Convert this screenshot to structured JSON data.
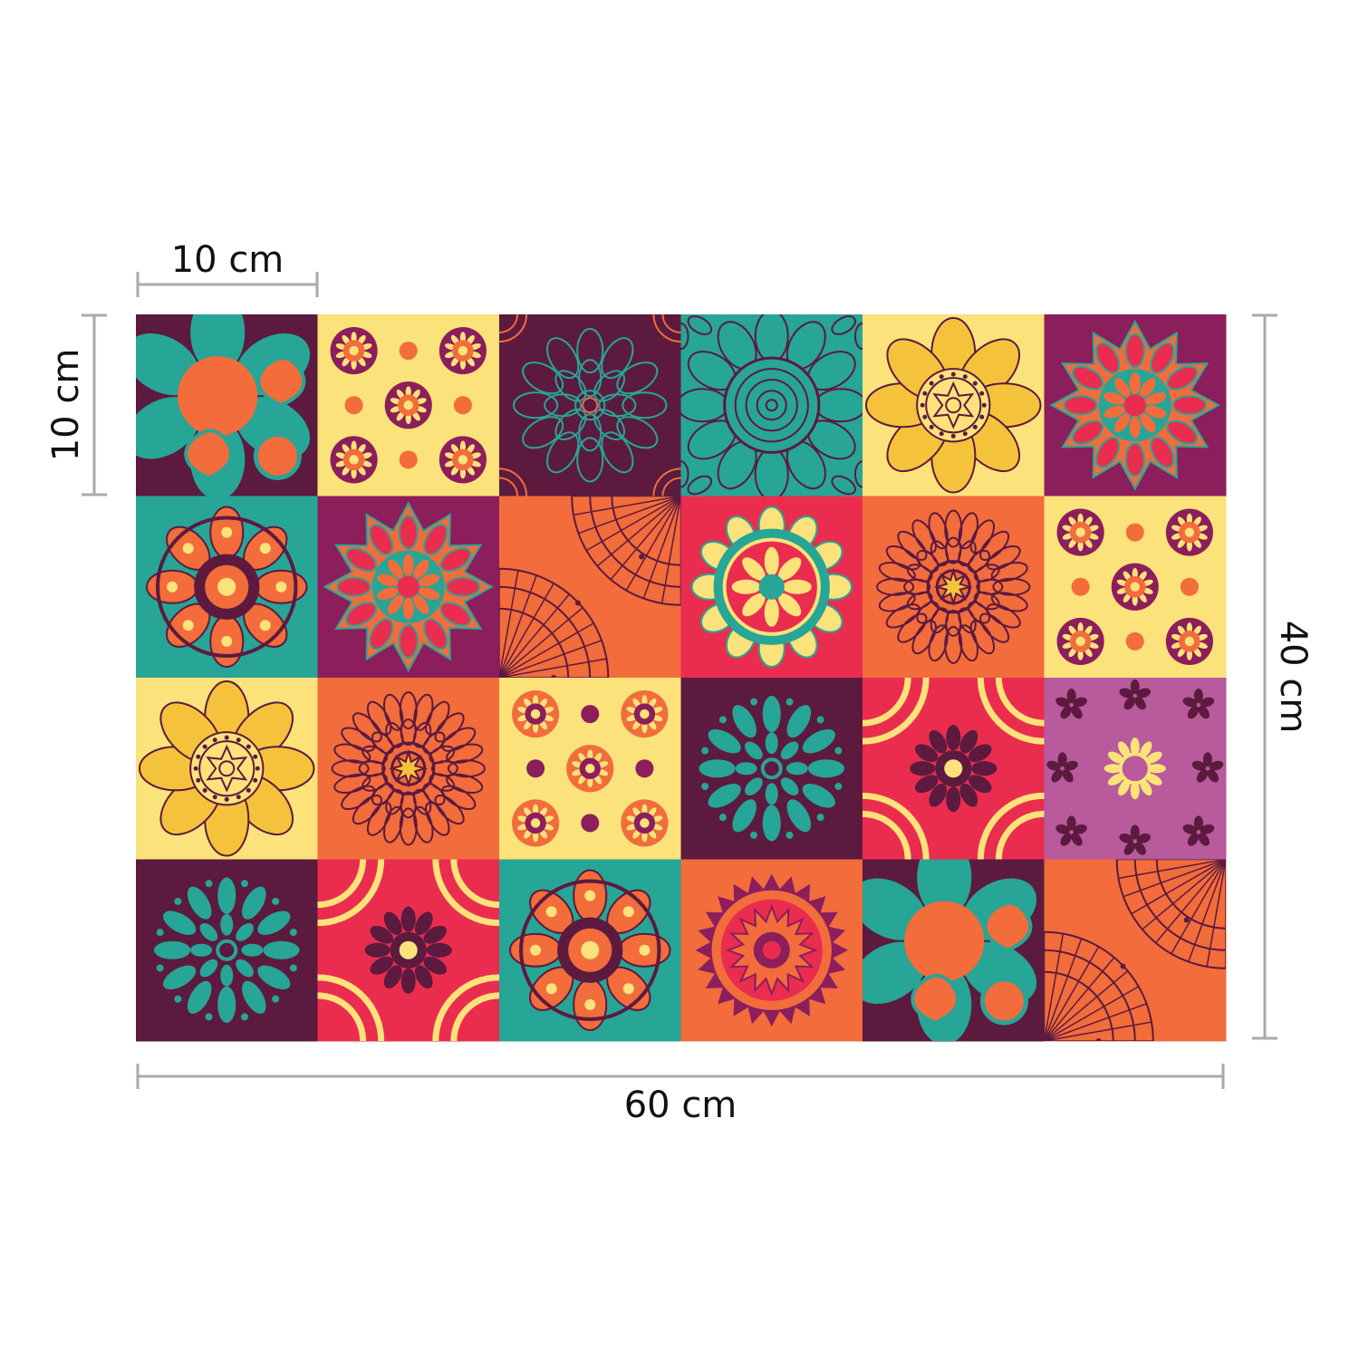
{
  "dimensions": {
    "tile_width_label": "10 cm",
    "tile_height_label": "10 cm",
    "total_height_label": "40 cm",
    "total_width_label": "60 cm"
  },
  "grid": {
    "rows": 4,
    "cols": 6
  },
  "palette": {
    "plum": "#5c1a3f",
    "teal": "#27a596",
    "yellow": "#fbe27a",
    "orange": "#f26c3c",
    "red": "#ea2d4f",
    "magenta": "#8c1e5c",
    "mauve": "#b85a9c",
    "gold": "#f5c23c"
  },
  "tiles": [
    {
      "bg": "#5c1a3f",
      "motif": "quarter-mandala",
      "c1": "#27a596",
      "c2": "#f26c3c",
      "c3": "#ea2d4f"
    },
    {
      "bg": "#fbe27a",
      "motif": "rosette-grid",
      "c1": "#8c1e5c",
      "c2": "#f26c3c",
      "c3": "#fbe27a"
    },
    {
      "bg": "#5c1a3f",
      "motif": "lace-mandala",
      "c1": "#27a596",
      "c2": "#f26c3c",
      "c3": "#5c1a3f"
    },
    {
      "bg": "#27a596",
      "motif": "sunburst",
      "c1": "#5c1a3f",
      "c2": "#27a596",
      "c3": "#27a596"
    },
    {
      "bg": "#fbe27a",
      "motif": "petal-star",
      "c1": "#f5c23c",
      "c2": "#5c1a3f",
      "c3": "#fbe27a"
    },
    {
      "bg": "#8c1e5c",
      "motif": "star-mandala",
      "c1": "#27a596",
      "c2": "#f26c3c",
      "c3": "#ea2d4f"
    },
    {
      "bg": "#27a596",
      "motif": "medallion",
      "c1": "#f26c3c",
      "c2": "#5c1a3f",
      "c3": "#fbe27a"
    },
    {
      "bg": "#8c1e5c",
      "motif": "star-mandala",
      "c1": "#27a596",
      "c2": "#f26c3c",
      "c3": "#ea2d4f"
    },
    {
      "bg": "#f26c3c",
      "motif": "corner-fans",
      "c1": "#5c1a3f",
      "c2": "#f26c3c",
      "c3": "#f26c3c"
    },
    {
      "bg": "#ea2d4f",
      "motif": "ring-mandala",
      "c1": "#fbe27a",
      "c2": "#27a596",
      "c3": "#ea2d4f"
    },
    {
      "bg": "#f26c3c",
      "motif": "flower-mandala",
      "c1": "#5c1a3f",
      "c2": "#f5c23c",
      "c3": "#f26c3c"
    },
    {
      "bg": "#fbe27a",
      "motif": "rosette-grid",
      "c1": "#8c1e5c",
      "c2": "#f26c3c",
      "c3": "#fbe27a"
    },
    {
      "bg": "#fbe27a",
      "motif": "petal-star",
      "c1": "#f5c23c",
      "c2": "#5c1a3f",
      "c3": "#fbe27a"
    },
    {
      "bg": "#f26c3c",
      "motif": "flower-mandala",
      "c1": "#5c1a3f",
      "c2": "#f5c23c",
      "c3": "#f26c3c"
    },
    {
      "bg": "#fbe27a",
      "motif": "rosette-grid",
      "c1": "#f26c3c",
      "c2": "#8c1e5c",
      "c3": "#fbe27a"
    },
    {
      "bg": "#5c1a3f",
      "motif": "snowflake",
      "c1": "#27a596",
      "c2": "#27a596",
      "c3": "#5c1a3f"
    },
    {
      "bg": "#ea2d4f",
      "motif": "scroll-mandala",
      "c1": "#fbe27a",
      "c2": "#5c1a3f",
      "c3": "#ea2d4f"
    },
    {
      "bg": "#b85a9c",
      "motif": "scatter-flower",
      "c1": "#5c1a3f",
      "c2": "#fbe27a",
      "c3": "#b85a9c"
    },
    {
      "bg": "#5c1a3f",
      "motif": "snowflake",
      "c1": "#27a596",
      "c2": "#27a596",
      "c3": "#5c1a3f"
    },
    {
      "bg": "#ea2d4f",
      "motif": "scroll-mandala",
      "c1": "#fbe27a",
      "c2": "#5c1a3f",
      "c3": "#ea2d4f"
    },
    {
      "bg": "#27a596",
      "motif": "medallion",
      "c1": "#f26c3c",
      "c2": "#5c1a3f",
      "c3": "#fbe27a"
    },
    {
      "bg": "#f26c3c",
      "motif": "spiked-mandala",
      "c1": "#8c1e5c",
      "c2": "#ea2d4f",
      "c3": "#f26c3c"
    },
    {
      "bg": "#5c1a3f",
      "motif": "quarter-mandala",
      "c1": "#27a596",
      "c2": "#f26c3c",
      "c3": "#ea2d4f"
    },
    {
      "bg": "#f26c3c",
      "motif": "corner-fans",
      "c1": "#5c1a3f",
      "c2": "#f26c3c",
      "c3": "#f26c3c"
    }
  ]
}
